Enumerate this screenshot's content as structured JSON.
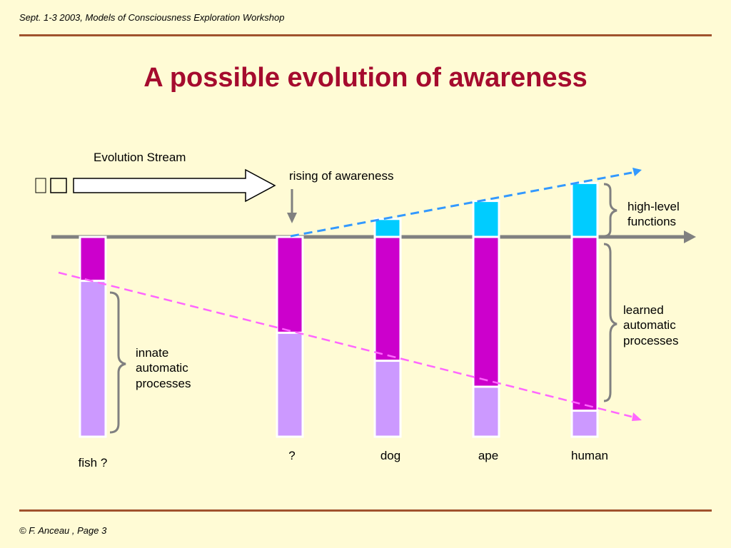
{
  "header": {
    "text": "Sept. 1-3 2003, Models of Consciousness Exploration Workshop"
  },
  "title": "A possible evolution of awareness",
  "footer": {
    "text": "©  F. Anceau , Page 3"
  },
  "diagram": {
    "evolution_stream_label": "Evolution Stream",
    "rising_label": "rising of awareness",
    "high_level_label": [
      "high-level",
      "functions"
    ],
    "learned_label": [
      "learned",
      "automatic",
      "processes"
    ],
    "innate_label": [
      "innate",
      "automatic",
      "processes"
    ],
    "stages": [
      {
        "name": "fish ?",
        "high_level": 0,
        "learned": 0.22,
        "innate": 0.78
      },
      {
        "name": "?",
        "high_level": 0,
        "learned": 0.48,
        "innate": 0.52
      },
      {
        "name": "dog",
        "high_level": 0.09,
        "learned": 0.62,
        "innate": 0.39
      },
      {
        "name": "ape",
        "high_level": 0.18,
        "learned": 0.75,
        "innate": 0.27
      },
      {
        "name": "human",
        "high_level": 0.27,
        "learned": 0.87,
        "innate": 0.13
      }
    ],
    "colors": {
      "high_level": "#00ccff",
      "learned": "#cc00cc",
      "innate": "#cc99ff",
      "awareness_line": "#3399ff",
      "innate_line": "#ff66ff",
      "axis": "#808080",
      "brace": "#808080"
    }
  }
}
